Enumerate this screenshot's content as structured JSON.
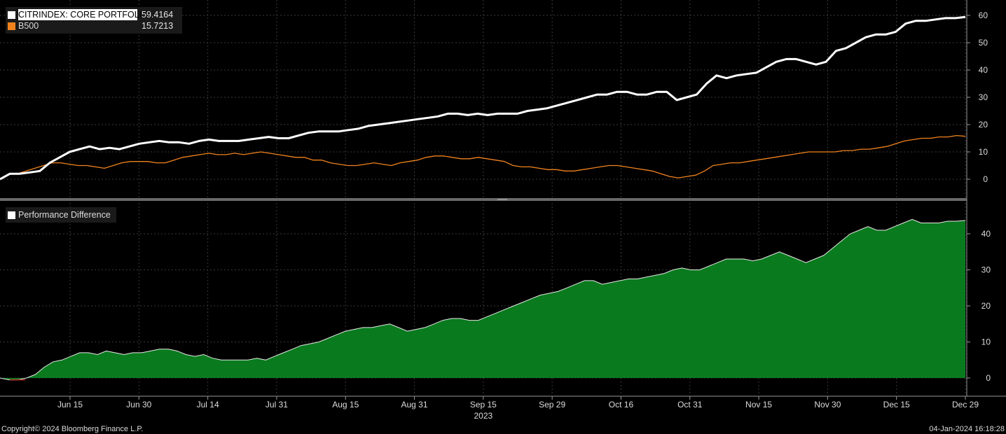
{
  "legend_top": [
    {
      "name": "CITRINDEX: CORE PORTFOLIO",
      "value": "59.4164",
      "color": "#ffffff"
    },
    {
      "name": "B500",
      "value": "15.7213",
      "color": "#f0821e"
    }
  ],
  "legend_bottom": {
    "name": "Performance Difference",
    "color": "#ffffff"
  },
  "footer": {
    "copyright": "Copyright© 2024 Bloomberg Finance L.P.",
    "timestamp": "04-Jan-2024 16:18:28"
  },
  "colors": {
    "background": "#000000",
    "area_fill": "#0a7a1e",
    "grid": "#3a3a3a",
    "divider": "#6a6a6a"
  },
  "chart_data": [
    {
      "type": "line",
      "x_ticks": [
        "Jun 15",
        "Jun 30",
        "Jul 14",
        "Jul 31",
        "Aug 15",
        "Aug 31",
        "Sep 15",
        "Sep 29",
        "Oct 16",
        "Oct 31",
        "Nov 15",
        "Nov 30",
        "Dec 15",
        "Dec 29"
      ],
      "year_label": "2023",
      "ylim": [
        -5,
        63
      ],
      "y_ticks": [
        0,
        10,
        20,
        30,
        40,
        50,
        60
      ],
      "grid": true,
      "series": [
        {
          "name": "CITRINDEX: CORE PORTFOLIO",
          "color": "#ffffff",
          "width": 3,
          "values": [
            0,
            2,
            2,
            2.5,
            3,
            6,
            8,
            10,
            11,
            12,
            11,
            11.5,
            11,
            12,
            13,
            13.5,
            14,
            13.5,
            13.5,
            13,
            14,
            14.5,
            14,
            14,
            14,
            14.5,
            15,
            15.5,
            15,
            15,
            16,
            17,
            17.5,
            17.5,
            17.5,
            18,
            18.5,
            19.5,
            20,
            20.5,
            21,
            21.5,
            22,
            22.5,
            23,
            24,
            24,
            23.5,
            24,
            23.5,
            24,
            24,
            24,
            25,
            25.5,
            26,
            27,
            28,
            29,
            30,
            31,
            31,
            32,
            32,
            31,
            31,
            32,
            32,
            29,
            30,
            31,
            35,
            38,
            37,
            38,
            38.5,
            39,
            41,
            43,
            44,
            44,
            43,
            42,
            43,
            47,
            48,
            50,
            52,
            53,
            53,
            54,
            57,
            58,
            58,
            58.5,
            59,
            59,
            59.4164
          ]
        },
        {
          "name": "B500",
          "color": "#f0821e",
          "width": 1.3,
          "values": [
            0,
            2,
            2,
            3,
            4,
            5,
            6,
            6,
            5.5,
            5,
            5,
            4.5,
            4,
            5,
            6,
            6.5,
            6.5,
            6.5,
            6,
            6,
            7,
            8,
            8.5,
            9,
            9.5,
            9,
            9,
            9.5,
            9,
            9.5,
            10,
            9.5,
            9,
            8.5,
            8,
            8,
            7,
            7,
            6,
            5.5,
            5,
            5,
            5.5,
            6,
            5.5,
            5,
            6,
            6.5,
            7,
            8,
            8.5,
            8.5,
            8,
            7.5,
            7.5,
            8,
            7.5,
            7,
            6.5,
            5,
            4.5,
            4.5,
            4,
            3.5,
            3.5,
            3,
            3,
            3.5,
            4,
            4.5,
            5,
            5,
            4.5,
            4,
            3.5,
            3,
            2,
            1,
            0.5,
            1,
            1.5,
            3,
            5,
            5.5,
            6,
            6,
            6.5,
            7,
            7.5,
            8,
            8.5,
            9,
            9.5,
            10,
            10,
            10,
            10,
            10.5,
            10.5,
            11,
            11,
            11.5,
            12,
            13,
            14,
            14.5,
            15,
            15,
            15.5,
            15.5,
            16,
            15.7213
          ]
        }
      ]
    },
    {
      "type": "area",
      "ylim": [
        -4,
        47
      ],
      "y_ticks": [
        0,
        10,
        20,
        30,
        40
      ],
      "grid": true,
      "series": [
        {
          "name": "Performance Difference",
          "color": "#0a7a1e",
          "values": [
            0,
            -0.5,
            -0.5,
            0,
            1,
            3,
            4.5,
            5,
            6,
            7,
            7,
            6.5,
            7.5,
            7,
            6.5,
            7,
            7,
            7.5,
            8,
            8,
            7.5,
            6.5,
            6,
            6.5,
            5.5,
            5,
            5,
            5,
            5,
            5.5,
            5,
            6,
            7,
            8,
            9,
            9.5,
            10,
            11,
            12,
            13,
            13.5,
            14,
            14,
            14.5,
            15,
            14,
            13,
            13.5,
            14,
            15,
            16,
            16.5,
            16.5,
            16,
            16,
            17,
            18,
            19,
            20,
            21,
            22,
            23,
            23.5,
            24,
            25,
            26,
            27,
            27,
            26,
            26.5,
            27,
            27.5,
            27.5,
            28,
            28.5,
            29,
            30,
            30.5,
            30,
            30,
            31,
            32,
            33,
            33,
            33,
            32.5,
            33,
            34,
            35,
            34,
            33,
            32,
            33,
            34,
            36,
            38,
            40,
            41,
            42,
            41,
            41,
            42,
            43,
            44,
            43,
            43,
            43,
            43.5,
            43.5,
            43.7
          ]
        }
      ]
    }
  ]
}
